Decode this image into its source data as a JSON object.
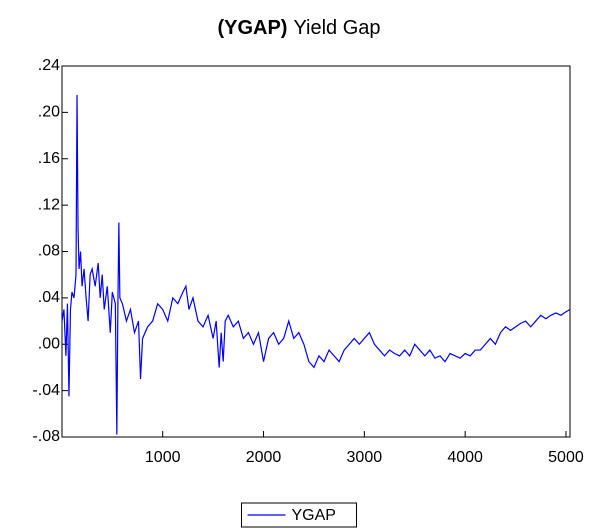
{
  "chart_data": {
    "type": "line",
    "title_prefix": "(YGAP)",
    "title": "Yield Gap",
    "x": [
      1,
      20,
      40,
      55,
      70,
      85,
      100,
      120,
      140,
      150,
      160,
      170,
      185,
      200,
      220,
      240,
      260,
      280,
      300,
      330,
      360,
      380,
      400,
      420,
      450,
      480,
      500,
      530,
      545,
      555,
      565,
      575,
      600,
      640,
      680,
      720,
      760,
      780,
      800,
      850,
      900,
      950,
      1000,
      1050,
      1100,
      1150,
      1200,
      1230,
      1260,
      1300,
      1350,
      1400,
      1450,
      1500,
      1530,
      1560,
      1580,
      1600,
      1620,
      1650,
      1700,
      1750,
      1800,
      1850,
      1900,
      1950,
      2000,
      2050,
      2100,
      2150,
      2200,
      2250,
      2300,
      2350,
      2400,
      2450,
      2500,
      2550,
      2600,
      2650,
      2700,
      2750,
      2800,
      2850,
      2900,
      2950,
      3000,
      3050,
      3100,
      3150,
      3200,
      3250,
      3300,
      3350,
      3400,
      3450,
      3500,
      3550,
      3600,
      3650,
      3700,
      3750,
      3800,
      3850,
      3900,
      3950,
      4000,
      4050,
      4100,
      4150,
      4200,
      4250,
      4300,
      4350,
      4400,
      4450,
      4500,
      4550,
      4600,
      4650,
      4700,
      4750,
      4800,
      4850,
      4900,
      4950,
      5000,
      5040
    ],
    "series": [
      {
        "name": "YGAP",
        "color": "#0000ff",
        "values": [
          0.02,
          0.03,
          -0.01,
          0.035,
          -0.045,
          0.03,
          0.045,
          0.04,
          0.06,
          0.215,
          0.1,
          0.065,
          0.08,
          0.05,
          0.065,
          0.04,
          0.02,
          0.06,
          0.065,
          0.05,
          0.07,
          0.04,
          0.06,
          0.03,
          0.05,
          0.01,
          0.045,
          0.035,
          -0.078,
          0.03,
          0.105,
          0.04,
          0.035,
          0.02,
          0.03,
          0.01,
          0.02,
          -0.03,
          0.005,
          0.015,
          0.02,
          0.035,
          0.03,
          0.02,
          0.04,
          0.035,
          0.045,
          0.05,
          0.03,
          0.04,
          0.02,
          0.015,
          0.025,
          0.005,
          0.02,
          -0.02,
          0.01,
          -0.015,
          0.02,
          0.025,
          0.015,
          0.02,
          0.005,
          0.01,
          0.0,
          0.01,
          -0.015,
          0.005,
          0.01,
          0.0,
          0.005,
          0.02,
          0.005,
          0.01,
          0.0,
          -0.015,
          -0.02,
          -0.01,
          -0.015,
          -0.005,
          -0.01,
          -0.015,
          -0.005,
          0.0,
          0.005,
          0.0,
          0.005,
          0.01,
          0.0,
          -0.005,
          -0.01,
          -0.005,
          -0.008,
          -0.01,
          -0.005,
          -0.01,
          0.0,
          -0.005,
          -0.01,
          -0.005,
          -0.012,
          -0.01,
          -0.015,
          -0.008,
          -0.01,
          -0.012,
          -0.008,
          -0.01,
          -0.005,
          -0.005,
          0.0,
          0.005,
          0.0,
          0.01,
          0.015,
          0.012,
          0.015,
          0.018,
          0.02,
          0.015,
          0.02,
          0.025,
          0.022,
          0.025,
          0.027,
          0.025,
          0.028,
          0.03
        ]
      }
    ],
    "xlim": [
      1,
      5040
    ],
    "xticks": [
      1000,
      2000,
      3000,
      4000,
      5000
    ],
    "ylim": [
      -0.08,
      0.24
    ],
    "yticks": [
      {
        "value": -0.08,
        "label": "-.08"
      },
      {
        "value": -0.04,
        "label": "-.04"
      },
      {
        "value": 0,
        "label": ".00"
      },
      {
        "value": 0.04,
        "label": ".04"
      },
      {
        "value": 0.08,
        "label": ".08"
      },
      {
        "value": 0.12,
        "label": ".12"
      },
      {
        "value": 0.16,
        "label": ".16"
      },
      {
        "value": 0.2,
        "label": ".20"
      },
      {
        "value": 0.24,
        "label": ".24"
      }
    ],
    "legend": "bottom"
  }
}
